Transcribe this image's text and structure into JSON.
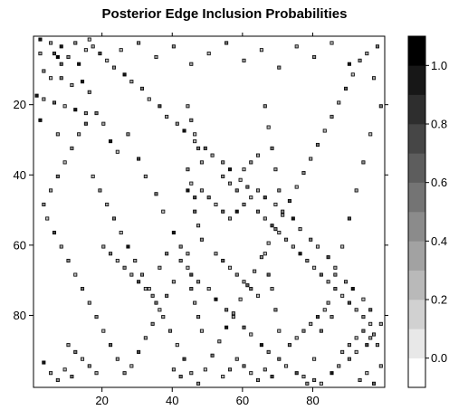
{
  "chart_data": {
    "type": "heatmap",
    "title": "Posterior Edge Inclusion Probabilities",
    "xlabel": "",
    "ylabel": "",
    "n": 100,
    "xlim": [
      1,
      100
    ],
    "ylim": [
      1,
      100
    ],
    "x_ticks": [
      20,
      40,
      60,
      80
    ],
    "y_ticks": [
      20,
      40,
      60,
      80
    ],
    "y_inverted": true,
    "colorbar": {
      "range": [
        -0.1,
        1.1
      ],
      "ticks": [
        0.0,
        0.2,
        0.4,
        0.6,
        0.8,
        1.0
      ],
      "levels": 12,
      "low_color": "#ffffff",
      "high_color": "#000000"
    },
    "cells": [
      [
        2,
        1,
        0.9
      ],
      [
        5,
        2,
        0.3
      ],
      [
        8,
        3,
        0.95
      ],
      [
        12,
        2,
        0.5
      ],
      [
        16,
        1,
        0.2
      ],
      [
        2,
        5,
        0.3
      ],
      [
        6,
        5,
        0.8
      ],
      [
        7,
        6,
        1.0
      ],
      [
        8,
        8,
        0.7
      ],
      [
        10,
        6,
        0.4
      ],
      [
        13,
        8,
        0.9
      ],
      [
        15,
        4,
        0.2
      ],
      [
        3,
        10,
        0.4
      ],
      [
        5,
        12,
        0.2
      ],
      [
        8,
        12,
        0.6
      ],
      [
        11,
        14,
        0.3
      ],
      [
        14,
        13,
        0.9
      ],
      [
        16,
        16,
        0.5
      ],
      [
        1,
        17,
        0.95
      ],
      [
        3,
        18,
        0.3
      ],
      [
        6,
        19,
        0.7
      ],
      [
        9,
        20,
        0.2
      ],
      [
        12,
        21,
        0.9
      ],
      [
        15,
        22,
        0.4
      ],
      [
        2,
        24,
        0.9
      ],
      [
        7,
        28,
        0.3
      ],
      [
        18,
        22,
        0.6
      ],
      [
        20,
        25,
        0.3
      ],
      [
        22,
        30,
        0.9
      ],
      [
        24,
        33,
        0.2
      ],
      [
        27,
        28,
        0.5
      ],
      [
        30,
        35,
        0.8
      ],
      [
        32,
        40,
        0.3
      ],
      [
        35,
        45,
        0.6
      ],
      [
        37,
        50,
        0.2
      ],
      [
        40,
        56,
        0.9
      ],
      [
        42,
        60,
        0.5
      ],
      [
        44,
        62,
        0.3
      ],
      [
        45,
        68,
        0.8
      ],
      [
        47,
        70,
        0.4
      ],
      [
        50,
        72,
        0.2
      ],
      [
        52,
        75,
        0.9
      ],
      [
        55,
        78,
        0.6
      ],
      [
        57,
        80,
        0.3
      ],
      [
        60,
        83,
        0.7
      ],
      [
        62,
        85,
        0.2
      ],
      [
        65,
        88,
        0.9
      ],
      [
        67,
        90,
        0.4
      ],
      [
        70,
        92,
        0.6
      ],
      [
        72,
        94,
        0.2
      ],
      [
        75,
        96,
        0.8
      ],
      [
        77,
        97,
        0.3
      ],
      [
        80,
        98,
        0.5
      ],
      [
        82,
        99,
        0.2
      ],
      [
        85,
        96,
        0.9
      ],
      [
        87,
        94,
        0.3
      ],
      [
        90,
        92,
        0.6
      ],
      [
        92,
        90,
        0.2
      ],
      [
        95,
        88,
        0.8
      ],
      [
        97,
        85,
        0.4
      ],
      [
        99,
        82,
        0.3
      ],
      [
        96,
        78,
        0.7
      ],
      [
        94,
        75,
        0.2
      ],
      [
        91,
        72,
        0.9
      ],
      [
        89,
        70,
        0.5
      ],
      [
        86,
        66,
        0.3
      ],
      [
        84,
        63,
        0.8
      ],
      [
        81,
        60,
        0.2
      ],
      [
        79,
        58,
        0.6
      ],
      [
        76,
        55,
        0.3
      ],
      [
        74,
        52,
        0.9
      ],
      [
        71,
        50,
        0.4
      ],
      [
        69,
        48,
        0.2
      ],
      [
        66,
        46,
        0.8
      ],
      [
        64,
        44,
        0.3
      ],
      [
        61,
        43,
        0.6
      ],
      [
        59,
        41,
        0.2
      ],
      [
        56,
        38,
        0.9
      ],
      [
        54,
        36,
        0.4
      ],
      [
        51,
        34,
        0.3
      ],
      [
        49,
        32,
        0.7
      ],
      [
        46,
        30,
        0.2
      ],
      [
        43,
        27,
        0.9
      ],
      [
        41,
        25,
        0.5
      ],
      [
        38,
        23,
        0.3
      ],
      [
        36,
        20,
        0.8
      ],
      [
        33,
        18,
        0.2
      ],
      [
        31,
        15,
        0.6
      ],
      [
        28,
        13,
        0.3
      ],
      [
        26,
        11,
        0.9
      ],
      [
        23,
        9,
        0.4
      ],
      [
        21,
        7,
        0.2
      ],
      [
        19,
        5,
        0.8
      ],
      [
        17,
        3,
        0.3
      ],
      [
        25,
        4,
        0.2
      ],
      [
        30,
        2,
        0.4
      ],
      [
        35,
        6,
        0.3
      ],
      [
        40,
        3,
        0.5
      ],
      [
        45,
        8,
        0.3
      ],
      [
        50,
        5,
        0.2
      ],
      [
        55,
        2,
        0.6
      ],
      [
        60,
        7,
        0.3
      ],
      [
        65,
        4,
        0.2
      ],
      [
        70,
        9,
        0.4
      ],
      [
        75,
        3,
        0.3
      ],
      [
        80,
        6,
        0.5
      ],
      [
        85,
        2,
        0.2
      ],
      [
        90,
        8,
        0.9
      ],
      [
        95,
        5,
        0.3
      ],
      [
        98,
        3,
        0.6
      ],
      [
        44,
        44,
        0.9
      ],
      [
        46,
        46,
        0.8
      ],
      [
        48,
        44,
        0.3
      ],
      [
        50,
        46,
        0.6
      ],
      [
        52,
        48,
        0.2
      ],
      [
        54,
        50,
        0.7
      ],
      [
        56,
        52,
        0.3
      ],
      [
        58,
        50,
        0.9
      ],
      [
        60,
        48,
        0.4
      ],
      [
        62,
        46,
        0.2
      ],
      [
        64,
        50,
        0.6
      ],
      [
        66,
        52,
        0.3
      ],
      [
        68,
        54,
        0.8
      ],
      [
        70,
        56,
        0.2
      ],
      [
        72,
        58,
        0.5
      ],
      [
        74,
        60,
        0.3
      ],
      [
        76,
        62,
        0.9
      ],
      [
        78,
        64,
        0.4
      ],
      [
        80,
        66,
        0.2
      ],
      [
        82,
        68,
        0.7
      ],
      [
        84,
        70,
        0.3
      ],
      [
        86,
        72,
        0.6
      ],
      [
        88,
        74,
        0.2
      ],
      [
        90,
        76,
        0.8
      ],
      [
        92,
        78,
        0.3
      ],
      [
        94,
        80,
        0.5
      ],
      [
        96,
        82,
        0.2
      ],
      [
        42,
        64,
        0.4
      ],
      [
        40,
        70,
        0.3
      ],
      [
        38,
        74,
        0.6
      ],
      [
        36,
        78,
        0.2
      ],
      [
        34,
        82,
        0.5
      ],
      [
        32,
        86,
        0.3
      ],
      [
        30,
        90,
        0.8
      ],
      [
        28,
        94,
        0.2
      ],
      [
        26,
        96,
        0.4
      ],
      [
        24,
        92,
        0.3
      ],
      [
        22,
        88,
        0.7
      ],
      [
        20,
        84,
        0.2
      ],
      [
        18,
        80,
        0.5
      ],
      [
        16,
        76,
        0.3
      ],
      [
        14,
        72,
        0.6
      ],
      [
        12,
        68,
        0.2
      ],
      [
        10,
        64,
        0.4
      ],
      [
        8,
        60,
        0.3
      ],
      [
        6,
        56,
        0.8
      ],
      [
        4,
        52,
        0.2
      ],
      [
        3,
        48,
        0.5
      ],
      [
        5,
        44,
        0.3
      ],
      [
        7,
        40,
        0.6
      ],
      [
        9,
        36,
        0.2
      ],
      [
        11,
        32,
        0.4
      ],
      [
        13,
        28,
        0.3
      ],
      [
        15,
        25,
        0.7
      ],
      [
        17,
        40,
        0.2
      ],
      [
        19,
        44,
        0.5
      ],
      [
        21,
        48,
        0.3
      ],
      [
        23,
        52,
        0.6
      ],
      [
        25,
        56,
        0.2
      ],
      [
        27,
        60,
        0.9
      ],
      [
        29,
        64,
        0.3
      ],
      [
        31,
        68,
        0.5
      ],
      [
        33,
        72,
        0.2
      ],
      [
        35,
        76,
        0.6
      ],
      [
        37,
        80,
        0.3
      ],
      [
        39,
        84,
        0.4
      ],
      [
        41,
        88,
        0.2
      ],
      [
        43,
        92,
        0.8
      ],
      [
        45,
        96,
        0.3
      ],
      [
        47,
        99,
        0.5
      ],
      [
        49,
        95,
        0.2
      ],
      [
        51,
        91,
        0.6
      ],
      [
        53,
        87,
        0.3
      ],
      [
        55,
        83,
        0.9
      ],
      [
        57,
        79,
        0.4
      ],
      [
        59,
        75,
        0.2
      ],
      [
        61,
        71,
        0.7
      ],
      [
        63,
        67,
        0.3
      ],
      [
        65,
        63,
        0.5
      ],
      [
        67,
        59,
        0.2
      ],
      [
        69,
        55,
        0.6
      ],
      [
        71,
        51,
        0.3
      ],
      [
        73,
        47,
        0.8
      ],
      [
        75,
        43,
        0.2
      ],
      [
        77,
        39,
        0.5
      ],
      [
        79,
        35,
        0.3
      ],
      [
        81,
        31,
        0.6
      ],
      [
        83,
        27,
        0.2
      ],
      [
        85,
        23,
        0.4
      ],
      [
        87,
        19,
        0.3
      ],
      [
        89,
        15,
        0.7
      ],
      [
        91,
        11,
        0.2
      ],
      [
        93,
        7,
        0.5
      ],
      [
        97,
        12,
        0.3
      ],
      [
        99,
        20,
        0.6
      ],
      [
        96,
        28,
        0.2
      ],
      [
        94,
        36,
        0.4
      ],
      [
        92,
        44,
        0.3
      ],
      [
        90,
        52,
        0.8
      ],
      [
        88,
        60,
        0.2
      ],
      [
        86,
        68,
        0.5
      ],
      [
        84,
        76,
        0.3
      ],
      [
        82,
        84,
        0.6
      ],
      [
        80,
        92,
        0.2
      ],
      [
        78,
        99,
        0.4
      ],
      [
        44,
        20,
        0.3
      ],
      [
        45,
        24,
        0.5
      ],
      [
        46,
        28,
        0.2
      ],
      [
        47,
        32,
        0.6
      ],
      [
        48,
        36,
        0.3
      ],
      [
        44,
        38,
        0.4
      ],
      [
        45,
        42,
        0.2
      ],
      [
        46,
        50,
        0.7
      ],
      [
        47,
        54,
        0.3
      ],
      [
        48,
        58,
        0.5
      ],
      [
        44,
        66,
        0.2
      ],
      [
        45,
        72,
        0.6
      ],
      [
        46,
        76,
        0.3
      ],
      [
        47,
        80,
        0.4
      ],
      [
        48,
        84,
        0.2
      ],
      [
        66,
        20,
        0.4
      ],
      [
        67,
        26,
        0.2
      ],
      [
        68,
        32,
        0.6
      ],
      [
        69,
        38,
        0.3
      ],
      [
        70,
        44,
        0.5
      ],
      [
        66,
        62,
        0.2
      ],
      [
        67,
        68,
        0.7
      ],
      [
        68,
        72,
        0.3
      ],
      [
        69,
        78,
        0.5
      ],
      [
        70,
        84,
        0.2
      ],
      [
        20,
        60,
        0.3
      ],
      [
        22,
        62,
        0.6
      ],
      [
        24,
        64,
        0.2
      ],
      [
        26,
        66,
        0.4
      ],
      [
        28,
        68,
        0.3
      ],
      [
        30,
        70,
        0.8
      ],
      [
        32,
        72,
        0.2
      ],
      [
        34,
        74,
        0.5
      ],
      [
        36,
        66,
        0.3
      ],
      [
        38,
        62,
        0.6
      ],
      [
        52,
        62,
        0.3
      ],
      [
        54,
        64,
        0.7
      ],
      [
        56,
        66,
        0.2
      ],
      [
        58,
        68,
        0.5
      ],
      [
        60,
        70,
        0.3
      ],
      [
        62,
        72,
        0.6
      ],
      [
        64,
        74,
        0.2
      ],
      [
        54,
        40,
        0.4
      ],
      [
        56,
        42,
        0.3
      ],
      [
        58,
        44,
        0.6
      ],
      [
        60,
        38,
        0.2
      ],
      [
        62,
        36,
        0.5
      ],
      [
        64,
        34,
        0.3
      ],
      [
        73,
        88,
        0.6
      ],
      [
        75,
        86,
        0.2
      ],
      [
        77,
        84,
        0.4
      ],
      [
        79,
        82,
        0.3
      ],
      [
        81,
        80,
        0.8
      ],
      [
        83,
        78,
        0.2
      ],
      [
        85,
        80,
        0.5
      ],
      [
        10,
        88,
        0.3
      ],
      [
        12,
        90,
        0.6
      ],
      [
        14,
        92,
        0.2
      ],
      [
        16,
        94,
        0.4
      ],
      [
        18,
        96,
        0.3
      ],
      [
        3,
        93,
        0.9
      ],
      [
        5,
        96,
        0.3
      ],
      [
        7,
        98,
        0.5
      ],
      [
        9,
        95,
        0.2
      ],
      [
        11,
        97,
        0.6
      ],
      [
        58,
        92,
        0.3
      ],
      [
        60,
        94,
        0.6
      ],
      [
        62,
        96,
        0.2
      ],
      [
        64,
        98,
        0.5
      ],
      [
        66,
        95,
        0.3
      ],
      [
        68,
        97,
        0.8
      ],
      [
        54,
        97,
        0.2
      ],
      [
        56,
        95,
        0.4
      ],
      [
        40,
        95,
        0.3
      ],
      [
        42,
        97,
        0.6
      ],
      [
        88,
        90,
        0.3
      ],
      [
        90,
        88,
        0.5
      ],
      [
        92,
        86,
        0.2
      ],
      [
        94,
        84,
        0.6
      ],
      [
        96,
        86,
        0.3
      ],
      [
        98,
        88,
        0.4
      ],
      [
        95,
        96,
        0.2
      ],
      [
        97,
        99,
        0.7
      ],
      [
        99,
        94,
        0.3
      ],
      [
        93,
        98,
        0.5
      ]
    ]
  }
}
